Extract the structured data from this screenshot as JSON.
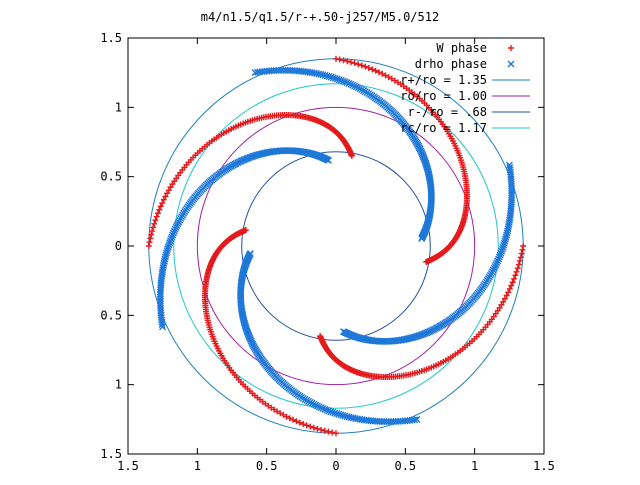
{
  "chart_data": {
    "type": "scatter",
    "title": "m4/n1.5/q1.5/r-+.50-j257/M5.0/512",
    "xlabel": "",
    "ylabel": "",
    "xlim": [
      -1.5,
      1.5
    ],
    "ylim": [
      -1.5,
      1.5
    ],
    "xtick_labels": [
      "1.5",
      "1",
      "0.5",
      "0",
      "0.5",
      "1",
      "1.5"
    ],
    "ytick_labels": [
      "1.5",
      "1",
      "0.5",
      "0",
      "0.5",
      "1",
      "1.5"
    ],
    "xtick_values": [
      -1.5,
      -1,
      -0.5,
      0,
      0.5,
      1,
      1.5
    ],
    "ytick_values": [
      1.5,
      1,
      0.5,
      0,
      -0.5,
      -1,
      -1.5
    ],
    "grid": false,
    "legend_position": "top-right",
    "circles": [
      {
        "label": "r+/ro = 1.35",
        "radius": 1.35,
        "color": "#1f7fbf"
      },
      {
        "label": "ro/ro = 1.00",
        "radius": 1.0,
        "color": "#a020a0"
      },
      {
        "label": "r-/ro = .68",
        "radius": 0.68,
        "color": "#2050a0"
      },
      {
        "label": "rc/ro = 1.17",
        "radius": 1.17,
        "color": "#20c8c8"
      }
    ],
    "series": [
      {
        "name": "W phase",
        "marker": "+",
        "color": "#e41a1c"
      },
      {
        "name": "drho phase",
        "marker": "x",
        "color": "#1f78d8"
      }
    ]
  }
}
